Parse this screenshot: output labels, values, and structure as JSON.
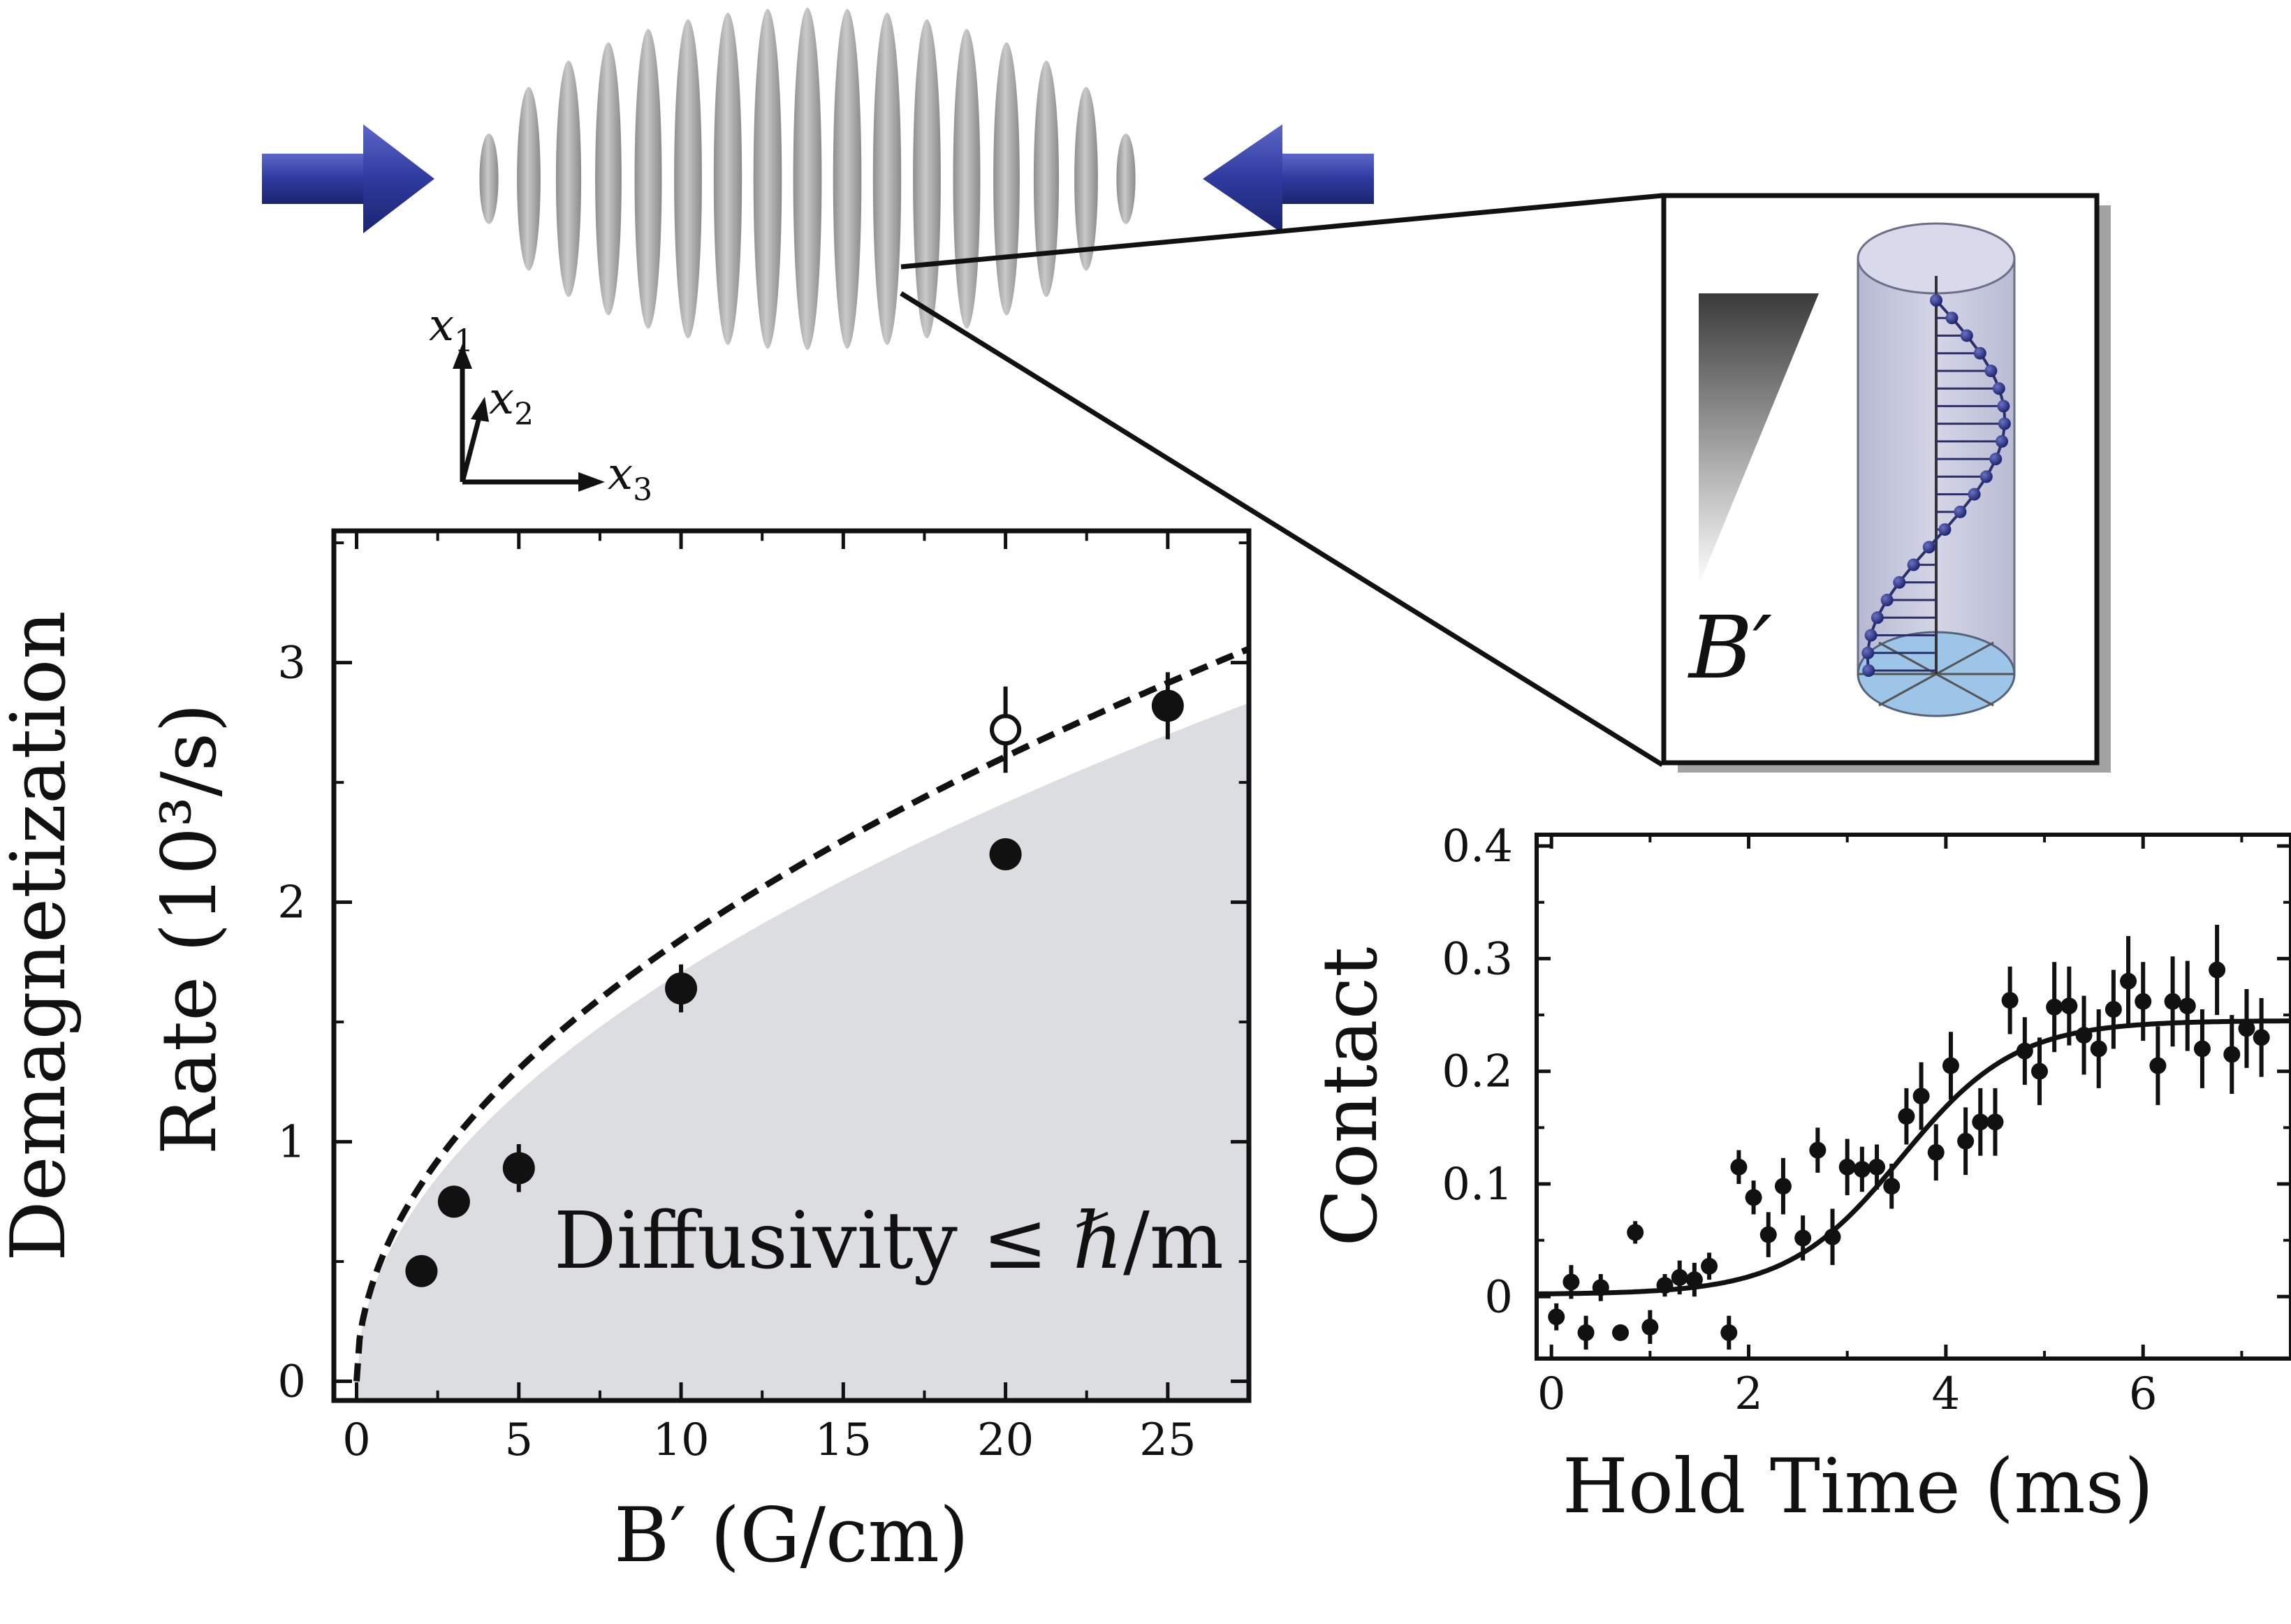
{
  "schematic": {
    "axes_labels": {
      "x1": "x",
      "x1_sub": "1",
      "x2": "x",
      "x2_sub": "2",
      "x3": "x",
      "x3_sub": "3"
    },
    "inset_label": "B′",
    "arrow_color": "#2e3a9e",
    "lattice_color": "#a9a9a9",
    "icons": [
      "left-beam-arrow-icon",
      "right-beam-arrow-icon",
      "lattice-pancakes-icon",
      "gradient-wedge-icon",
      "spin-helix-cylinder-icon"
    ]
  },
  "chart_data": [
    {
      "id": "demagnetization",
      "type": "scatter",
      "xlabel": "B′ (G/cm)",
      "ylabel_line1": "Demagnetization",
      "ylabel_line2": "Rate (10³/s)",
      "xlim": [
        -0.7,
        27.5
      ],
      "ylim": [
        -0.08,
        3.55
      ],
      "xticks": [
        0,
        5,
        10,
        15,
        20,
        25
      ],
      "yticks": [
        0,
        1,
        2,
        3
      ],
      "grid": false,
      "annotation": "Diffusivity ≤ ℏ/m",
      "series": [
        {
          "kind": "points_filled",
          "x": [
            2,
            3,
            5,
            10,
            20,
            25
          ],
          "y": [
            0.46,
            0.75,
            0.89,
            1.64,
            2.2,
            2.82
          ],
          "yerr": [
            0.02,
            0.02,
            0.1,
            0.1,
            0.05,
            0.14
          ]
        },
        {
          "kind": "points_open",
          "x": [
            20
          ],
          "y": [
            2.72
          ],
          "yerr": [
            0.18
          ]
        },
        {
          "kind": "fit_dashed",
          "model": "sqrt",
          "coef": 0.583
        },
        {
          "kind": "bound_shaded",
          "model": "sqrt",
          "coef": 0.54,
          "color": "#dcdde0"
        }
      ]
    },
    {
      "id": "contact",
      "type": "scatter",
      "xlabel": "Hold Time (ms)",
      "ylabel": "Contact",
      "xlim": [
        -0.15,
        7.5
      ],
      "ylim": [
        -0.055,
        0.41
      ],
      "xticks": [
        0,
        2,
        4,
        6
      ],
      "yticks": [
        0,
        0.1,
        0.2,
        0.3,
        0.4
      ],
      "yticklabels": [
        "0",
        "0.1",
        "0.2",
        "0.3",
        "0.4"
      ],
      "grid": false,
      "series": [
        {
          "kind": "points_filled",
          "x": [
            0.05,
            0.2,
            0.35,
            0.5,
            0.7,
            0.85,
            1.0,
            1.15,
            1.3,
            1.45,
            1.6,
            1.8,
            1.9,
            2.05,
            2.2,
            2.35,
            2.55,
            2.7,
            2.85,
            3.0,
            3.15,
            3.3,
            3.45,
            3.6,
            3.75,
            3.9,
            4.05,
            4.2,
            4.35,
            4.5,
            4.65,
            4.8,
            4.95,
            5.1,
            5.25,
            5.4,
            5.55,
            5.7,
            5.85,
            6.0,
            6.15,
            6.3,
            6.45,
            6.6,
            6.75,
            6.9,
            7.05,
            7.2
          ],
          "y": [
            -0.018,
            0.013,
            -0.032,
            0.008,
            -0.032,
            0.057,
            -0.027,
            0.01,
            0.017,
            0.015,
            0.027,
            -0.032,
            0.115,
            0.088,
            0.055,
            0.098,
            0.052,
            0.13,
            0.053,
            0.115,
            0.113,
            0.115,
            0.098,
            0.16,
            0.178,
            0.128,
            0.205,
            0.138,
            0.155,
            0.155,
            0.263,
            0.218,
            0.2,
            0.257,
            0.258,
            0.232,
            0.22,
            0.255,
            0.28,
            0.262,
            0.205,
            0.262,
            0.258,
            0.22,
            0.29,
            0.215,
            0.238,
            0.23
          ],
          "yerr": [
            0.012,
            0.015,
            0.015,
            0.012,
            0.005,
            0.01,
            0.015,
            0.01,
            0.015,
            0.015,
            0.012,
            0.015,
            0.015,
            0.015,
            0.02,
            0.025,
            0.02,
            0.02,
            0.025,
            0.025,
            0.02,
            0.02,
            0.02,
            0.025,
            0.03,
            0.025,
            0.03,
            0.03,
            0.03,
            0.03,
            0.03,
            0.03,
            0.03,
            0.04,
            0.035,
            0.035,
            0.035,
            0.035,
            0.04,
            0.035,
            0.035,
            0.04,
            0.04,
            0.035,
            0.04,
            0.035,
            0.035,
            0.035
          ]
        },
        {
          "kind": "fit_solid",
          "model": "logistic",
          "base": 0.002,
          "amp": 0.243,
          "t0": 3.55,
          "width": 0.58
        }
      ]
    }
  ]
}
